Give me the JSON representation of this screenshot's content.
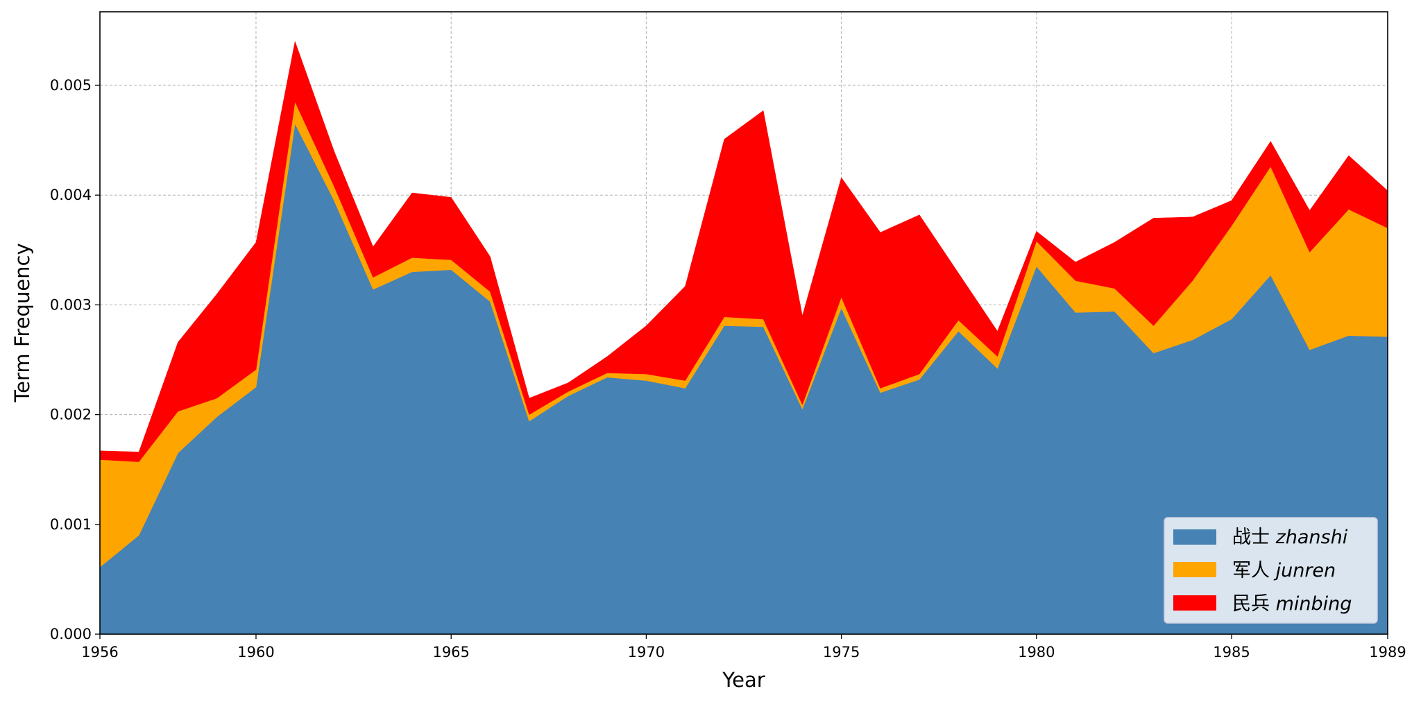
{
  "chart_data": {
    "type": "area",
    "stacked": true,
    "title": "",
    "xlabel": "Year",
    "ylabel": "Term Frequency",
    "xlim": [
      1956,
      1989
    ],
    "ylim": [
      0,
      0.00567
    ],
    "xticks": [
      "1956",
      "1960",
      "1965",
      "1970",
      "1975",
      "1980",
      "1985",
      "1989"
    ],
    "yticks": [
      "0.000",
      "0.001",
      "0.002",
      "0.003",
      "0.004",
      "0.005"
    ],
    "grid": true,
    "legend_position": "lower-right",
    "x": [
      1956,
      1957,
      1958,
      1959,
      1960,
      1961,
      1962,
      1963,
      1964,
      1965,
      1966,
      1967,
      1968,
      1969,
      1970,
      1971,
      1972,
      1973,
      1974,
      1975,
      1976,
      1977,
      1978,
      1979,
      1980,
      1981,
      1982,
      1983,
      1984,
      1985,
      1986,
      1987,
      1988,
      1989
    ],
    "series": [
      {
        "name": "zhanshi",
        "label_cn": "战士",
        "label_latin": "zhanshi",
        "color": "#4682b4",
        "values": [
          0.00061,
          0.0009,
          0.00165,
          0.00198,
          0.00225,
          0.00465,
          0.00395,
          0.00314,
          0.0033,
          0.00332,
          0.00303,
          0.00194,
          0.00217,
          0.00234,
          0.00231,
          0.00224,
          0.00281,
          0.0028,
          0.00205,
          0.00297,
          0.0022,
          0.00232,
          0.00276,
          0.00242,
          0.00335,
          0.00293,
          0.00294,
          0.00256,
          0.00268,
          0.00287,
          0.00327,
          0.00259,
          0.00272,
          0.00271
        ]
      },
      {
        "name": "junren",
        "label_cn": "军人",
        "label_latin": "junren",
        "color": "#ffa500",
        "values": [
          0.00098,
          0.00067,
          0.00038,
          0.00017,
          0.00016,
          0.0002,
          0.00013,
          0.00011,
          0.00013,
          9e-05,
          9e-05,
          6e-05,
          4e-05,
          4e-05,
          6e-05,
          7e-05,
          8e-05,
          7e-05,
          4e-05,
          0.0001,
          4e-05,
          5e-05,
          0.0001,
          0.00011,
          0.00023,
          0.00029,
          0.00021,
          0.00025,
          0.00054,
          0.00085,
          0.00099,
          0.00089,
          0.00115,
          0.00099
        ]
      },
      {
        "name": "minbing",
        "label_cn": "民兵",
        "label_latin": "minbing",
        "color": "#ff0000",
        "values": [
          8e-05,
          9e-05,
          0.00063,
          0.00095,
          0.00116,
          0.00055,
          0.00032,
          0.00028,
          0.00059,
          0.00057,
          0.00032,
          0.00015,
          8e-05,
          0.00015,
          0.00044,
          0.00086,
          0.00162,
          0.0019,
          0.00081,
          0.00109,
          0.00142,
          0.00145,
          0.00043,
          0.00023,
          9e-05,
          0.00017,
          0.00042,
          0.00098,
          0.00058,
          0.00023,
          0.00023,
          0.00038,
          0.00049,
          0.00034
        ]
      }
    ]
  }
}
